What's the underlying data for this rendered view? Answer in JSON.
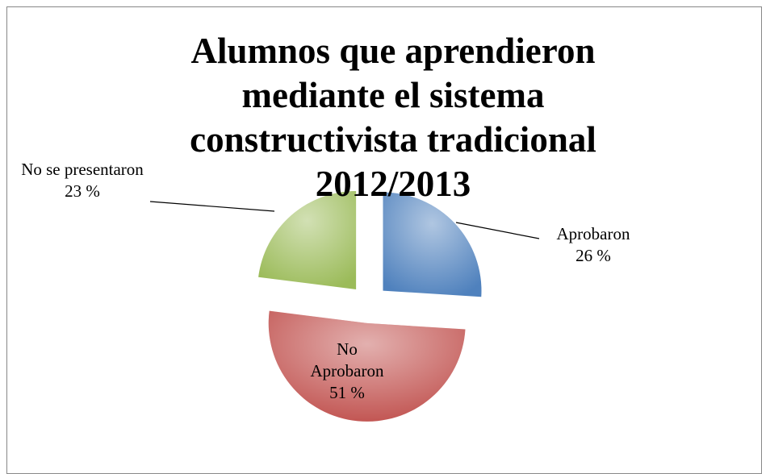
{
  "chart_data": {
    "type": "pie",
    "title": "Alumnos que aprendieron mediante el sistema constructivista tradicional 2012/2013",
    "categories": [
      "Aprobaron",
      "No Aprobaron",
      "No se presentaron"
    ],
    "values": [
      26,
      51,
      23
    ],
    "value_labels": [
      "26 %",
      "51 %",
      "23 %"
    ],
    "colors": [
      "#4f81bd",
      "#c0504d",
      "#9bbb59"
    ]
  }
}
